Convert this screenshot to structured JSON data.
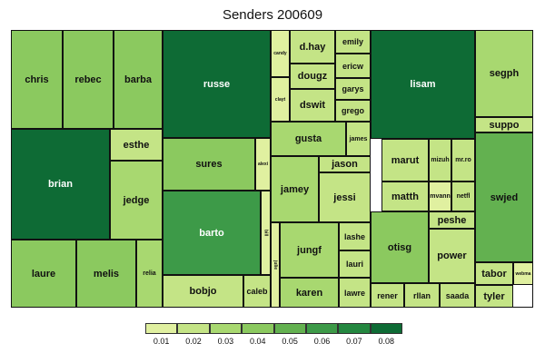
{
  "chart_data": {
    "type": "treemap",
    "title": "Senders 200609",
    "legend": {
      "labels": [
        "0.01",
        "0.02",
        "0.03",
        "0.04",
        "0.05",
        "0.06",
        "0.07",
        "0.08"
      ],
      "colors": [
        "#e0f0a0",
        "#c4e486",
        "#a8d870",
        "#8bc95f",
        "#63b150",
        "#3d9a48",
        "#248740",
        "#0e6b35"
      ]
    },
    "cells": [
      {
        "label": "chris",
        "value": 0.04
      },
      {
        "label": "rebec",
        "value": 0.04
      },
      {
        "label": "barba",
        "value": 0.04
      },
      {
        "label": "brian",
        "value": 0.08
      },
      {
        "label": "esthe",
        "value": 0.02
      },
      {
        "label": "jedge",
        "value": 0.03
      },
      {
        "label": "laure",
        "value": 0.04
      },
      {
        "label": "melis",
        "value": 0.04
      },
      {
        "label": "relia",
        "value": 0.03
      },
      {
        "label": "russe",
        "value": 0.08
      },
      {
        "label": "sures",
        "value": 0.04
      },
      {
        "label": "alexi",
        "value": 0.01
      },
      {
        "label": "barto",
        "value": 0.06
      },
      {
        "label": "bill",
        "value": 0.01
      },
      {
        "label": "bobjo",
        "value": 0.02
      },
      {
        "label": "caleb",
        "value": 0.02
      },
      {
        "label": "candy",
        "value": 0.01
      },
      {
        "label": "clayt",
        "value": 0.01
      },
      {
        "label": "d.hay",
        "value": 0.02
      },
      {
        "label": "emily",
        "value": 0.02
      },
      {
        "label": "dougz",
        "value": 0.02
      },
      {
        "label": "ericw",
        "value": 0.02
      },
      {
        "label": "dswit",
        "value": 0.02
      },
      {
        "label": "garys",
        "value": 0.02
      },
      {
        "label": "grego",
        "value": 0.02
      },
      {
        "label": "gusta",
        "value": 0.03
      },
      {
        "label": "james",
        "value": 0.02
      },
      {
        "label": "jason",
        "value": 0.02
      },
      {
        "label": "jamey",
        "value": 0.03
      },
      {
        "label": "jessi",
        "value": 0.02
      },
      {
        "label": "julie",
        "value": 0.01
      },
      {
        "label": "jungf",
        "value": 0.03
      },
      {
        "label": "lashe",
        "value": 0.02
      },
      {
        "label": "lauri",
        "value": 0.02
      },
      {
        "label": "karen",
        "value": 0.03
      },
      {
        "label": "lawre",
        "value": 0.02
      },
      {
        "label": "lisam",
        "value": 0.08
      },
      {
        "label": "marut",
        "value": 0.02
      },
      {
        "label": "mizuh",
        "value": 0.02
      },
      {
        "label": "mr.ro",
        "value": 0.02
      },
      {
        "label": "matth",
        "value": 0.02
      },
      {
        "label": "mvann",
        "value": 0.01
      },
      {
        "label": "netfl",
        "value": 0.02
      },
      {
        "label": "peshe",
        "value": 0.02
      },
      {
        "label": "otisg",
        "value": 0.04
      },
      {
        "label": "power",
        "value": 0.02
      },
      {
        "label": "rener",
        "value": 0.02
      },
      {
        "label": "rllan",
        "value": 0.02
      },
      {
        "label": "saada",
        "value": 0.02
      },
      {
        "label": "segph",
        "value": 0.03
      },
      {
        "label": "suppo",
        "value": 0.02
      },
      {
        "label": "swjed",
        "value": 0.05
      },
      {
        "label": "tabor",
        "value": 0.02
      },
      {
        "label": "webma",
        "value": 0.01
      },
      {
        "label": "tyler",
        "value": 0.02
      }
    ]
  }
}
